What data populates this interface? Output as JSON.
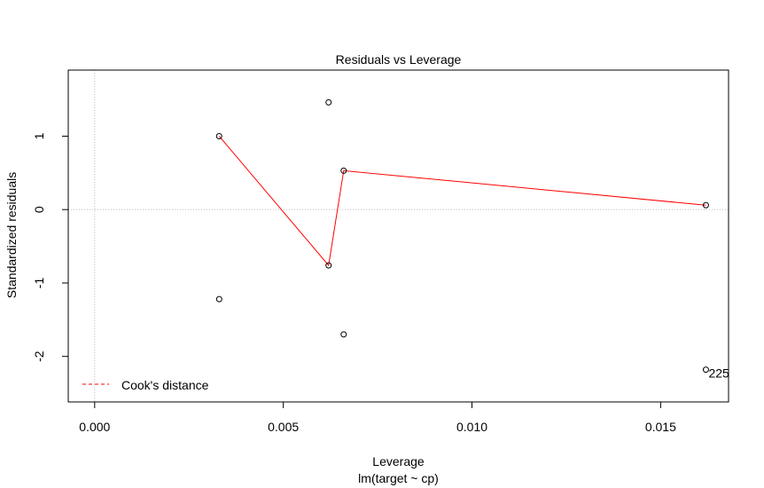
{
  "chart_data": {
    "type": "scatter",
    "title": "Residuals vs Leverage",
    "xlabel": "Leverage",
    "sublabel": "lm(target ~ cp)",
    "ylabel": "Standardized residuals",
    "xlim": [
      -0.0007,
      0.0168
    ],
    "ylim": [
      -2.62,
      1.9
    ],
    "x_ticks": [
      "0.000",
      "0.005",
      "0.010",
      "0.015"
    ],
    "x_tick_values": [
      0.0,
      0.005,
      0.01,
      0.015
    ],
    "y_ticks": [
      "-2",
      "-1",
      "0",
      "1"
    ],
    "y_tick_values": [
      -2,
      -1,
      0,
      1
    ],
    "points": [
      {
        "x": 0.0033,
        "y": 1.0
      },
      {
        "x": 0.0033,
        "y": -1.22
      },
      {
        "x": 0.0062,
        "y": 1.46
      },
      {
        "x": 0.0062,
        "y": -0.76
      },
      {
        "x": 0.0066,
        "y": 0.53
      },
      {
        "x": 0.0066,
        "y": -1.7
      },
      {
        "x": 0.0162,
        "y": 0.06
      },
      {
        "x": 0.0162,
        "y": -2.18
      }
    ],
    "smooth_line": {
      "color": "#ff0000",
      "points": [
        {
          "x": 0.0033,
          "y": 1.0
        },
        {
          "x": 0.0062,
          "y": -0.76
        },
        {
          "x": 0.0066,
          "y": 0.53
        },
        {
          "x": 0.0162,
          "y": 0.06
        }
      ]
    },
    "reference_lines": {
      "h": 0,
      "v": 0,
      "color": "#bebebe",
      "style": "dotted"
    },
    "point_annotation": {
      "text": "225",
      "x": 0.0162,
      "y": -2.18
    },
    "legend": {
      "position": "bottom-left",
      "entries": [
        {
          "label": "Cook's distance",
          "color": "#ff0000",
          "style": "dashed"
        }
      ]
    },
    "grid": false
  }
}
